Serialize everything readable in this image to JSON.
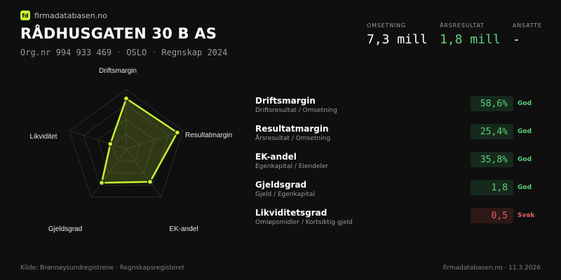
{
  "brand": {
    "logo_text": "fd",
    "name": "firmadatabasen.no"
  },
  "company": {
    "name": "RÅDHUSGATEN 30 B AS",
    "orgnr": "Org.nr 994 933 469",
    "city": "OSLO",
    "period": "Regnskap 2024",
    "separator": "·"
  },
  "kpis": [
    {
      "label": "OMSETNING",
      "value": "7,3 mill",
      "color": "#ffffff"
    },
    {
      "label": "ÅRSRESULTAT",
      "value": "1,8 mill",
      "color": "#5fd07a"
    },
    {
      "label": "ANSATTE",
      "value": "-",
      "color": "#ffffff"
    }
  ],
  "radar": {
    "axes": [
      "Driftsmargin",
      "Resultatmargin",
      "EK-andel",
      "Gjeldsgrad",
      "Likviditet"
    ],
    "scores": [
      0.85,
      0.9,
      0.68,
      0.7,
      0.28
    ],
    "accent": "#c6f432"
  },
  "metrics": [
    {
      "label": "Driftsmargin",
      "formula": "Driftsresultat / Omsetning",
      "value": "58,6%",
      "status": "God",
      "tone": "good"
    },
    {
      "label": "Resultatmargin",
      "formula": "Årsresultat / Omsetning",
      "value": "25,4%",
      "status": "God",
      "tone": "good"
    },
    {
      "label": "EK-andel",
      "formula": "Egenkapital / Eiendeler",
      "value": "35,8%",
      "status": "God",
      "tone": "good"
    },
    {
      "label": "Gjeldsgrad",
      "formula": "Gjeld / Egenkapital",
      "value": "1,8",
      "status": "God",
      "tone": "good"
    },
    {
      "label": "Likviditetsgrad",
      "formula": "Omløpsmidler / Kortsiktig gjeld",
      "value": "0,5",
      "status": "Svak",
      "tone": "bad"
    }
  ],
  "footer": {
    "source": "Kilde: Brønnøysundregistrene · Regnskapsregisteret",
    "site_date": "firmadatabasen.no · 11.3.2026"
  }
}
